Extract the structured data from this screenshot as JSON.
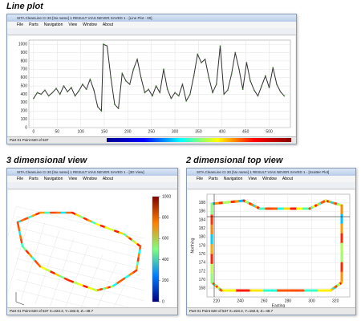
{
  "panels": [
    {
      "heading": "Line plot",
      "window_title": "SITA CleanLine CI 30 [No name] 1 RESULT VIAS NEVER SAVED 1 - [Line Plot - 00]",
      "menu": [
        "File",
        "Parts",
        "Navigation",
        "View",
        "Window",
        "About"
      ],
      "status": "Part 01  Point 620 of 537",
      "plot": {
        "type": "line",
        "color": "#2e2e2e",
        "x": [
          0,
          8,
          16,
          24,
          32,
          40,
          48,
          56,
          64,
          72,
          80,
          88,
          96,
          104,
          112,
          120,
          128,
          136,
          144,
          148,
          156,
          164,
          172,
          180,
          188,
          196,
          204,
          212,
          220,
          228,
          236,
          244,
          252,
          260,
          268,
          276,
          284,
          292,
          300,
          308,
          316,
          324,
          332,
          340,
          348,
          356,
          364,
          372,
          380,
          388,
          396,
          404,
          412,
          420,
          428,
          436,
          444,
          452,
          460,
          468,
          476,
          484,
          492,
          500,
          508,
          516,
          524,
          532
        ],
        "values": [
          350,
          420,
          400,
          450,
          380,
          420,
          470,
          400,
          500,
          430,
          480,
          380,
          440,
          520,
          460,
          580,
          450,
          250,
          200,
          1000,
          980,
          600,
          280,
          230,
          650,
          560,
          520,
          700,
          820,
          600,
          420,
          460,
          380,
          500,
          420,
          700,
          460,
          350,
          420,
          380,
          520,
          320,
          400,
          620,
          880,
          780,
          820,
          600,
          420,
          520,
          980,
          400,
          450,
          640,
          900,
          700,
          460,
          780,
          560,
          450,
          380,
          500,
          620,
          480,
          720,
          520,
          430,
          380
        ],
        "xlim": [
          -10,
          545
        ],
        "ylim": [
          0,
          1050
        ],
        "xticks": [
          0,
          50,
          100,
          150,
          200,
          250,
          300,
          350,
          400,
          450,
          500
        ],
        "yticks": [
          0,
          100,
          200,
          300,
          400,
          500,
          600,
          700,
          800,
          900,
          1000
        ]
      }
    },
    {
      "heading": "3 dimensional view",
      "window_title": "SITA CleanLine CI 30 [No name] 1 RESULT VIAS NEVER SAVED 1 - [3D View]",
      "menu": [
        "File",
        "Parts",
        "Navigation",
        "View",
        "Window",
        "About"
      ],
      "status": "Part 01  Point 620 of 537  X=223.3, Y=182.8, Z=-48.7",
      "colorbar": {
        "ylim": [
          0,
          1000
        ],
        "yticks": [
          0,
          200,
          400,
          600,
          800,
          1000
        ]
      }
    },
    {
      "heading": "2 dimensional top view",
      "window_title": "SITA CleanLine CI 30 [No name] 1 RESULT VIAS NEVER SAVED 1 - [Scatter Plot]",
      "menu": [
        "File",
        "Parts",
        "Navigation",
        "View",
        "Window",
        "About"
      ],
      "status": "Part 01  Point 620 of 537  X=223.3, Y=182.8, Z=-48.7",
      "plot": {
        "xlabel": "Easting",
        "ylabel": "Northing",
        "xlim": [
          212,
          332
        ],
        "ylim": [
          166,
          190
        ],
        "xticks": [
          220,
          240,
          260,
          280,
          300,
          320
        ],
        "yticks": [
          168,
          170,
          172,
          174,
          176,
          178,
          180,
          182,
          184,
          186,
          188
        ]
      }
    }
  ]
}
